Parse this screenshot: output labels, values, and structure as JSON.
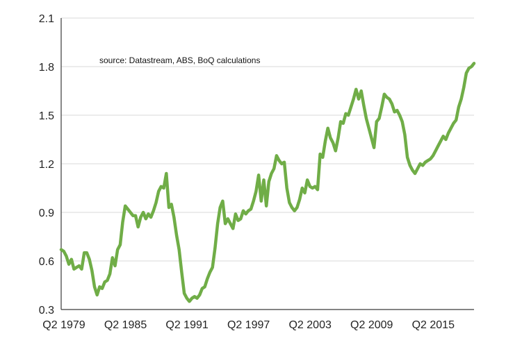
{
  "chart_data": {
    "type": "line",
    "annotation": "source:  Datastream, ABS, BoQ calculations",
    "grid": true,
    "legend": "none",
    "xlabel": "",
    "ylabel": "",
    "xlim": [
      1979.25,
      2019.5
    ],
    "ylim": [
      0.3,
      2.1
    ],
    "y_ticks": [
      "0.3",
      "0.6",
      "0.9",
      "1.2",
      "1.5",
      "1.8",
      "2.1"
    ],
    "x_ticks": [
      {
        "label": "Q2 1979",
        "x": 1979.25
      },
      {
        "label": "Q2 1985",
        "x": 1985.25
      },
      {
        "label": "Q2 1991",
        "x": 1991.25
      },
      {
        "label": "Q2 1997",
        "x": 1997.25
      },
      {
        "label": "Q2 2003",
        "x": 2003.25
      },
      {
        "label": "Q2 2009",
        "x": 2009.25
      },
      {
        "label": "Q2 2015",
        "x": 2015.25
      }
    ],
    "series": [
      {
        "color": "#70ad47",
        "x": [
          1979.25,
          1979.5,
          1979.75,
          1980.0,
          1980.25,
          1980.5,
          1980.75,
          1981.0,
          1981.25,
          1981.5,
          1981.75,
          1982.0,
          1982.25,
          1982.5,
          1982.75,
          1983.0,
          1983.25,
          1983.5,
          1983.75,
          1984.0,
          1984.25,
          1984.5,
          1984.75,
          1985.0,
          1985.25,
          1985.5,
          1985.75,
          1986.0,
          1986.25,
          1986.5,
          1986.75,
          1987.0,
          1987.25,
          1987.5,
          1987.75,
          1988.0,
          1988.25,
          1988.5,
          1988.75,
          1989.0,
          1989.25,
          1989.5,
          1989.75,
          1990.0,
          1990.25,
          1990.5,
          1990.75,
          1991.0,
          1991.25,
          1991.5,
          1991.75,
          1992.0,
          1992.25,
          1992.5,
          1992.75,
          1993.0,
          1993.25,
          1993.5,
          1993.75,
          1994.0,
          1994.25,
          1994.5,
          1994.75,
          1995.0,
          1995.25,
          1995.5,
          1995.75,
          1996.0,
          1996.25,
          1996.5,
          1996.75,
          1997.0,
          1997.25,
          1997.5,
          1997.75,
          1998.0,
          1998.25,
          1998.5,
          1998.75,
          1999.0,
          1999.25,
          1999.5,
          1999.75,
          2000.0,
          2000.25,
          2000.5,
          2000.75,
          2001.0,
          2001.25,
          2001.5,
          2001.75,
          2002.0,
          2002.25,
          2002.5,
          2002.75,
          2003.0,
          2003.25,
          2003.5,
          2003.75,
          2004.0,
          2004.25,
          2004.5,
          2004.75,
          2005.0,
          2005.25,
          2005.5,
          2005.75,
          2006.0,
          2006.25,
          2006.5,
          2006.75,
          2007.0,
          2007.25,
          2007.5,
          2007.75,
          2008.0,
          2008.25,
          2008.5,
          2008.75,
          2009.0,
          2009.25,
          2009.5,
          2009.75,
          2010.0,
          2010.25,
          2010.5,
          2010.75,
          2011.0,
          2011.25,
          2011.5,
          2011.75,
          2012.0,
          2012.25,
          2012.5,
          2012.75,
          2013.0,
          2013.25,
          2013.5,
          2013.75,
          2014.0,
          2014.25,
          2014.5,
          2014.75,
          2015.0,
          2015.25,
          2015.5,
          2015.75,
          2016.0,
          2016.25,
          2016.5,
          2016.75,
          2017.0,
          2017.25,
          2017.5,
          2017.75,
          2018.0,
          2018.25,
          2018.5,
          2018.75,
          2019.0,
          2019.25,
          2019.5
        ],
        "values": [
          0.67,
          0.66,
          0.63,
          0.58,
          0.61,
          0.55,
          0.56,
          0.57,
          0.55,
          0.65,
          0.65,
          0.61,
          0.54,
          0.44,
          0.39,
          0.44,
          0.43,
          0.47,
          0.48,
          0.52,
          0.62,
          0.57,
          0.67,
          0.7,
          0.84,
          0.94,
          0.92,
          0.9,
          0.88,
          0.88,
          0.81,
          0.87,
          0.9,
          0.86,
          0.89,
          0.87,
          0.91,
          0.96,
          1.03,
          1.06,
          1.05,
          1.14,
          0.93,
          0.95,
          0.87,
          0.76,
          0.67,
          0.53,
          0.4,
          0.37,
          0.35,
          0.37,
          0.38,
          0.37,
          0.39,
          0.43,
          0.44,
          0.49,
          0.53,
          0.56,
          0.68,
          0.83,
          0.93,
          0.97,
          0.83,
          0.86,
          0.83,
          0.8,
          0.89,
          0.85,
          0.86,
          0.91,
          0.89,
          0.91,
          0.92,
          0.97,
          1.03,
          1.13,
          0.97,
          1.1,
          0.94,
          1.09,
          1.14,
          1.17,
          1.25,
          1.22,
          1.2,
          1.21,
          1.05,
          0.96,
          0.93,
          0.91,
          0.93,
          0.98,
          1.05,
          1.02,
          1.1,
          1.06,
          1.05,
          1.06,
          1.04,
          1.26,
          1.24,
          1.34,
          1.42,
          1.36,
          1.33,
          1.28,
          1.36,
          1.46,
          1.45,
          1.51,
          1.5,
          1.55,
          1.6,
          1.66,
          1.6,
          1.65,
          1.56,
          1.48,
          1.42,
          1.36,
          1.3,
          1.46,
          1.48,
          1.55,
          1.63,
          1.61,
          1.6,
          1.57,
          1.52,
          1.53,
          1.5,
          1.46,
          1.38,
          1.24,
          1.19,
          1.16,
          1.14,
          1.17,
          1.2,
          1.19,
          1.21,
          1.22,
          1.23,
          1.25,
          1.28,
          1.31,
          1.34,
          1.37,
          1.35,
          1.39,
          1.42,
          1.45,
          1.47,
          1.55,
          1.6,
          1.67,
          1.76,
          1.79,
          1.8,
          1.82
        ]
      }
    ]
  }
}
